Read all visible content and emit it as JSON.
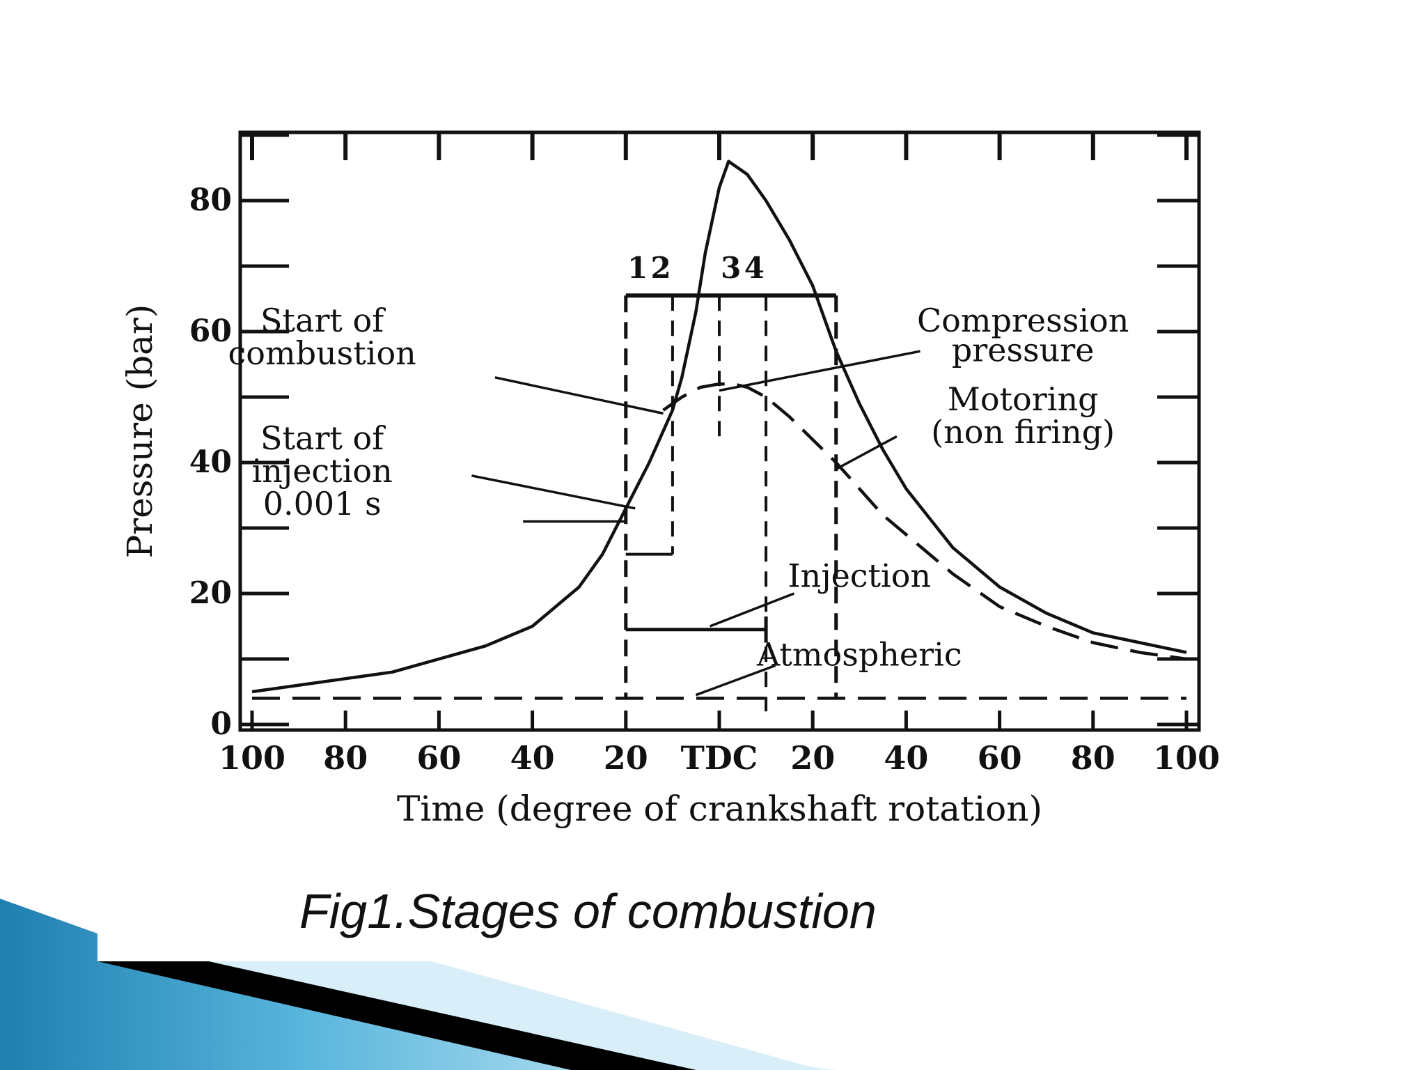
{
  "caption": "Fig1.Stages of combustion",
  "colors": {
    "ink": "#111111",
    "background": "#ffffff",
    "accent_dark": "#000000",
    "accent_blue": "#2a86b8",
    "accent_light": "#9fd3ea"
  },
  "chart_data": {
    "type": "line",
    "xlabel": "Time (degree of crankshaft rotation)",
    "ylabel": "Pressure (bar)",
    "x_tick_labels": [
      "100",
      "80",
      "60",
      "40",
      "20",
      "TDC",
      "20",
      "40",
      "60",
      "80",
      "100"
    ],
    "x_tick_values": [
      -100,
      -80,
      -60,
      -40,
      -20,
      0,
      20,
      40,
      60,
      80,
      100
    ],
    "y_tick_labels": [
      "0",
      "20",
      "40",
      "60",
      "80"
    ],
    "y_tick_values": [
      0,
      20,
      40,
      60,
      80
    ],
    "xlim": [
      -100,
      100
    ],
    "ylim": [
      0,
      90
    ],
    "grid": false,
    "series": [
      {
        "style": "solid",
        "x": [
          -100,
          -90,
          -80,
          -70,
          -60,
          -50,
          -40,
          -30,
          -25,
          -20,
          -15,
          -10,
          -8,
          -5,
          -3,
          0,
          2,
          4,
          6,
          8,
          10,
          15,
          20,
          25,
          30,
          35,
          40,
          50,
          60,
          70,
          80,
          90,
          100
        ],
        "y": [
          5,
          6,
          7,
          8,
          10,
          12,
          15,
          21,
          26,
          33,
          40,
          48,
          53,
          63,
          72,
          82,
          86,
          85,
          84,
          82,
          80,
          74,
          67,
          57,
          49,
          42,
          36,
          27,
          21,
          17,
          14,
          12.5,
          11
        ]
      },
      {
        "style": "dashed",
        "x": [
          -12,
          -8,
          -4,
          0,
          3,
          6,
          10,
          15,
          20,
          25,
          30,
          35,
          40,
          50,
          60,
          70,
          80,
          90,
          100
        ],
        "y": [
          48,
          50,
          51.5,
          52,
          52,
          51.5,
          50,
          47,
          43.5,
          40,
          36,
          32,
          29,
          23,
          18,
          15,
          12.5,
          11,
          10
        ]
      },
      {
        "style": "dashed",
        "x": [
          -100,
          100
        ],
        "y": [
          4,
          4
        ]
      }
    ],
    "stage_labels": [
      "1",
      "2",
      "3",
      "4"
    ],
    "stage_boundaries": [
      -20,
      -10,
      0,
      10,
      25
    ],
    "injection_interval": [
      -20,
      10
    ],
    "annotations": [
      {
        "text": "Start of",
        "x": -85,
        "y": 60
      },
      {
        "text": "combustion",
        "x": -85,
        "y": 55
      },
      {
        "text": "Start of",
        "x": -85,
        "y": 42
      },
      {
        "text": "injection",
        "x": -85,
        "y": 37
      },
      {
        "text": "0.001 s",
        "x": -85,
        "y": 32
      },
      {
        "text": "Compression",
        "x": 65,
        "y": 60
      },
      {
        "text": "pressure",
        "x": 65,
        "y": 55.5
      },
      {
        "text": "Motoring",
        "x": 65,
        "y": 48
      },
      {
        "text": "(non firing)",
        "x": 65,
        "y": 43
      },
      {
        "text": "Injection",
        "x": 30,
        "y": 21
      },
      {
        "text": "Atmospheric",
        "x": 30,
        "y": 9
      }
    ]
  }
}
